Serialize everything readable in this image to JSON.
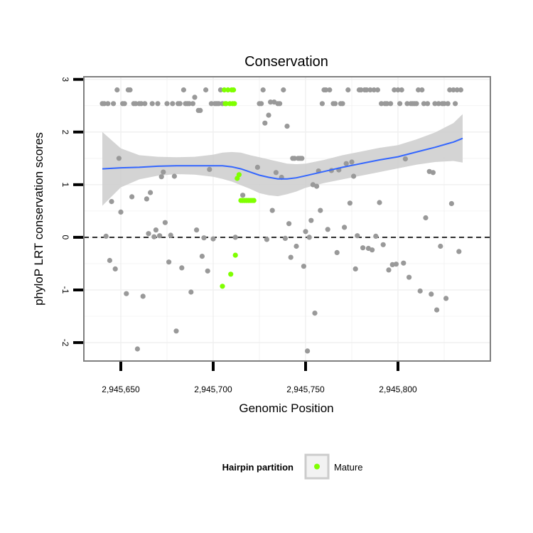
{
  "chart_data": {
    "type": "scatter",
    "title": "Conservation",
    "xlabel": "Genomic Position",
    "ylabel": "phyloP LRT conservation scores",
    "xlim": [
      2945630,
      2945850
    ],
    "ylim": [
      -2.35,
      3.05
    ],
    "x_ticks": [
      2945650,
      2945700,
      2945750,
      2945800
    ],
    "x_tick_labels": [
      "2,945,650",
      "2,945,700",
      "2,945,750",
      "2,945,800"
    ],
    "y_ticks": [
      -2,
      -1,
      0,
      1,
      2,
      3
    ],
    "y_tick_labels": [
      "-2",
      "-1",
      "0",
      "1",
      "2",
      "3"
    ],
    "grid": true,
    "reference_line": {
      "y": 0,
      "style": "dashed",
      "color": "#000000"
    },
    "legend": {
      "title": "Hairpin partition",
      "placement": "bottom",
      "entries": [
        {
          "label": "Mature",
          "color": "#7FFF00"
        }
      ]
    },
    "colors": {
      "default_points": "#999999",
      "mature_points": "#7FFF00",
      "smooth_line": "#3366FF",
      "confidence_band": "#CCCCCC",
      "grid": "#F0F0F0",
      "panel_border": "#7F7F7F"
    },
    "series": [
      {
        "group": "other",
        "points": [
          [
            2945640,
            2.54
          ],
          [
            2945641,
            2.54
          ],
          [
            2945642,
            0.02
          ],
          [
            2945643,
            2.54
          ],
          [
            2945644,
            -0.44
          ],
          [
            2945645,
            0.68
          ],
          [
            2945646,
            2.54
          ],
          [
            2945647,
            -0.6
          ],
          [
            2945648,
            2.8
          ],
          [
            2945649,
            1.5
          ],
          [
            2945650,
            0.48
          ],
          [
            2945651,
            2.54
          ],
          [
            2945652,
            2.54
          ],
          [
            2945653,
            -1.07
          ],
          [
            2945654,
            2.8
          ],
          [
            2945655,
            2.8
          ],
          [
            2945656,
            0.77
          ],
          [
            2945657,
            2.54
          ],
          [
            2945658,
            2.54
          ],
          [
            2945659,
            -2.12
          ],
          [
            2945660,
            2.54
          ],
          [
            2945661,
            2.54
          ],
          [
            2945662,
            -1.12
          ],
          [
            2945663,
            2.54
          ],
          [
            2945664,
            0.73
          ],
          [
            2945665,
            0.07
          ],
          [
            2945666,
            0.85
          ],
          [
            2945667,
            2.54
          ],
          [
            2945668,
            0.01
          ],
          [
            2945669,
            0.14
          ],
          [
            2945670,
            2.54
          ],
          [
            2945671,
            0.03
          ],
          [
            2945672,
            1.15
          ],
          [
            2945673,
            1.24
          ],
          [
            2945674,
            0.28
          ],
          [
            2945675,
            2.54
          ],
          [
            2945676,
            -0.47
          ],
          [
            2945677,
            0.04
          ],
          [
            2945678,
            2.54
          ],
          [
            2945679,
            1.16
          ],
          [
            2945680,
            -1.78
          ],
          [
            2945681,
            2.54
          ],
          [
            2945682,
            2.54
          ],
          [
            2945683,
            -0.58
          ],
          [
            2945684,
            2.8
          ],
          [
            2945685,
            2.54
          ],
          [
            2945686,
            2.54
          ],
          [
            2945687,
            2.54
          ],
          [
            2945688,
            -1.04
          ],
          [
            2945689,
            2.54
          ],
          [
            2945690,
            2.66
          ],
          [
            2945691,
            0.14
          ],
          [
            2945692,
            2.41
          ],
          [
            2945693,
            2.41
          ],
          [
            2945694,
            -0.36
          ],
          [
            2945695,
            -0.01
          ],
          [
            2945696,
            2.8
          ],
          [
            2945697,
            -0.64
          ],
          [
            2945698,
            1.29
          ],
          [
            2945699,
            2.54
          ],
          [
            2945700,
            -0.03
          ],
          [
            2945701,
            2.54
          ],
          [
            2945702,
            2.54
          ],
          [
            2945703,
            2.54
          ],
          [
            2945704,
            2.8
          ],
          [
            2945705,
            2.54
          ],
          [
            2945712,
            0.0
          ],
          [
            2945716,
            0.8
          ],
          [
            2945724,
            1.33
          ],
          [
            2945725,
            2.54
          ],
          [
            2945726,
            2.54
          ],
          [
            2945727,
            2.8
          ],
          [
            2945728,
            2.17
          ],
          [
            2945729,
            -0.04
          ],
          [
            2945730,
            2.32
          ],
          [
            2945731,
            2.57
          ],
          [
            2945732,
            0.51
          ],
          [
            2945733,
            2.57
          ],
          [
            2945734,
            1.23
          ],
          [
            2945735,
            2.54
          ],
          [
            2945736,
            2.54
          ],
          [
            2945737,
            1.14
          ],
          [
            2945738,
            2.8
          ],
          [
            2945739,
            -0.02
          ],
          [
            2945740,
            2.11
          ],
          [
            2945741,
            0.26
          ],
          [
            2945742,
            -0.38
          ],
          [
            2945743,
            1.5
          ],
          [
            2945744,
            1.5
          ],
          [
            2945745,
            -0.17
          ],
          [
            2945746,
            1.5
          ],
          [
            2945747,
            1.5
          ],
          [
            2945748,
            1.5
          ],
          [
            2945749,
            -0.55
          ],
          [
            2945750,
            0.11
          ],
          [
            2945751,
            -2.16
          ],
          [
            2945752,
            0.0
          ],
          [
            2945753,
            0.32
          ],
          [
            2945754,
            1.0
          ],
          [
            2945755,
            -1.44
          ],
          [
            2945756,
            0.97
          ],
          [
            2945757,
            1.26
          ],
          [
            2945758,
            0.51
          ],
          [
            2945759,
            2.54
          ],
          [
            2945760,
            2.8
          ],
          [
            2945761,
            2.8
          ],
          [
            2945762,
            0.15
          ],
          [
            2945763,
            2.8
          ],
          [
            2945764,
            1.27
          ],
          [
            2945765,
            2.54
          ],
          [
            2945766,
            2.54
          ],
          [
            2945767,
            -0.29
          ],
          [
            2945768,
            1.28
          ],
          [
            2945769,
            2.54
          ],
          [
            2945770,
            2.54
          ],
          [
            2945771,
            0.19
          ],
          [
            2945772,
            1.4
          ],
          [
            2945773,
            2.8
          ],
          [
            2945774,
            0.65
          ],
          [
            2945775,
            1.43
          ],
          [
            2945776,
            1.16
          ],
          [
            2945777,
            -0.6
          ],
          [
            2945778,
            0.03
          ],
          [
            2945779,
            2.8
          ],
          [
            2945780,
            2.8
          ],
          [
            2945781,
            -0.2
          ],
          [
            2945782,
            2.8
          ],
          [
            2945783,
            2.8
          ],
          [
            2945784,
            -0.21
          ],
          [
            2945785,
            2.8
          ],
          [
            2945786,
            -0.24
          ],
          [
            2945787,
            2.8
          ],
          [
            2945788,
            0.02
          ],
          [
            2945789,
            2.8
          ],
          [
            2945790,
            0.66
          ],
          [
            2945791,
            2.54
          ],
          [
            2945792,
            -0.14
          ],
          [
            2945793,
            2.54
          ],
          [
            2945794,
            2.54
          ],
          [
            2945795,
            -0.62
          ],
          [
            2945796,
            2.54
          ],
          [
            2945797,
            -0.52
          ],
          [
            2945798,
            2.8
          ],
          [
            2945799,
            -0.51
          ],
          [
            2945800,
            2.8
          ],
          [
            2945801,
            2.54
          ],
          [
            2945802,
            2.8
          ],
          [
            2945803,
            -0.49
          ],
          [
            2945804,
            1.49
          ],
          [
            2945805,
            2.54
          ],
          [
            2945806,
            -0.76
          ],
          [
            2945807,
            2.54
          ],
          [
            2945808,
            2.54
          ],
          [
            2945809,
            2.54
          ],
          [
            2945810,
            2.54
          ],
          [
            2945811,
            2.8
          ],
          [
            2945812,
            -1.02
          ],
          [
            2945813,
            2.8
          ],
          [
            2945814,
            2.54
          ],
          [
            2945815,
            0.37
          ],
          [
            2945816,
            2.54
          ],
          [
            2945817,
            1.25
          ],
          [
            2945818,
            -1.08
          ],
          [
            2945819,
            1.23
          ],
          [
            2945820,
            2.54
          ],
          [
            2945821,
            -1.38
          ],
          [
            2945822,
            2.54
          ],
          [
            2945823,
            -0.17
          ],
          [
            2945824,
            2.54
          ],
          [
            2945825,
            2.54
          ],
          [
            2945826,
            -1.16
          ],
          [
            2945827,
            2.54
          ],
          [
            2945828,
            2.8
          ],
          [
            2945829,
            0.64
          ],
          [
            2945830,
            2.8
          ],
          [
            2945831,
            2.54
          ],
          [
            2945832,
            2.8
          ],
          [
            2945833,
            -0.27
          ],
          [
            2945834,
            2.8
          ]
        ]
      },
      {
        "group": "Mature",
        "points": [
          [
            2945705,
            -0.93
          ],
          [
            2945706,
            2.8
          ],
          [
            2945706.5,
            2.54
          ],
          [
            2945707,
            2.54
          ],
          [
            2945708,
            2.8
          ],
          [
            2945709,
            2.54
          ],
          [
            2945709.5,
            -0.7
          ],
          [
            2945710,
            2.8
          ],
          [
            2945710.5,
            2.54
          ],
          [
            2945711,
            2.8
          ],
          [
            2945711.5,
            2.54
          ],
          [
            2945712,
            -0.34
          ],
          [
            2945713,
            1.12
          ],
          [
            2945714,
            1.19
          ],
          [
            2945715,
            0.7
          ],
          [
            2945716,
            0.7
          ],
          [
            2945717,
            0.7
          ],
          [
            2945718,
            0.7
          ],
          [
            2945719,
            0.7
          ],
          [
            2945720,
            0.7
          ],
          [
            2945721,
            0.7
          ],
          [
            2945722,
            0.7
          ]
        ]
      }
    ],
    "smooth_curve": {
      "x": [
        2945640,
        2945650,
        2945660,
        2945670,
        2945680,
        2945690,
        2945700,
        2945705,
        2945710,
        2945715,
        2945720,
        2945725,
        2945730,
        2945735,
        2945740,
        2945745,
        2945750,
        2945760,
        2945770,
        2945780,
        2945790,
        2945800,
        2945810,
        2945820,
        2945830,
        2945835
      ],
      "y": [
        1.3,
        1.32,
        1.33,
        1.35,
        1.36,
        1.36,
        1.36,
        1.36,
        1.34,
        1.3,
        1.24,
        1.18,
        1.14,
        1.11,
        1.11,
        1.13,
        1.17,
        1.25,
        1.33,
        1.4,
        1.47,
        1.53,
        1.62,
        1.71,
        1.81,
        1.88
      ],
      "lower": [
        0.6,
        0.95,
        1.1,
        1.17,
        1.2,
        1.19,
        1.15,
        1.11,
        1.06,
        0.99,
        0.92,
        0.84,
        0.8,
        0.78,
        0.82,
        0.87,
        0.94,
        1.03,
        1.1,
        1.17,
        1.24,
        1.31,
        1.38,
        1.43,
        1.45,
        1.42
      ],
      "upper": [
        2.0,
        1.69,
        1.56,
        1.53,
        1.52,
        1.53,
        1.57,
        1.61,
        1.62,
        1.61,
        1.56,
        1.52,
        1.48,
        1.44,
        1.4,
        1.39,
        1.4,
        1.47,
        1.56,
        1.63,
        1.7,
        1.75,
        1.86,
        1.99,
        2.17,
        2.34
      ]
    }
  }
}
